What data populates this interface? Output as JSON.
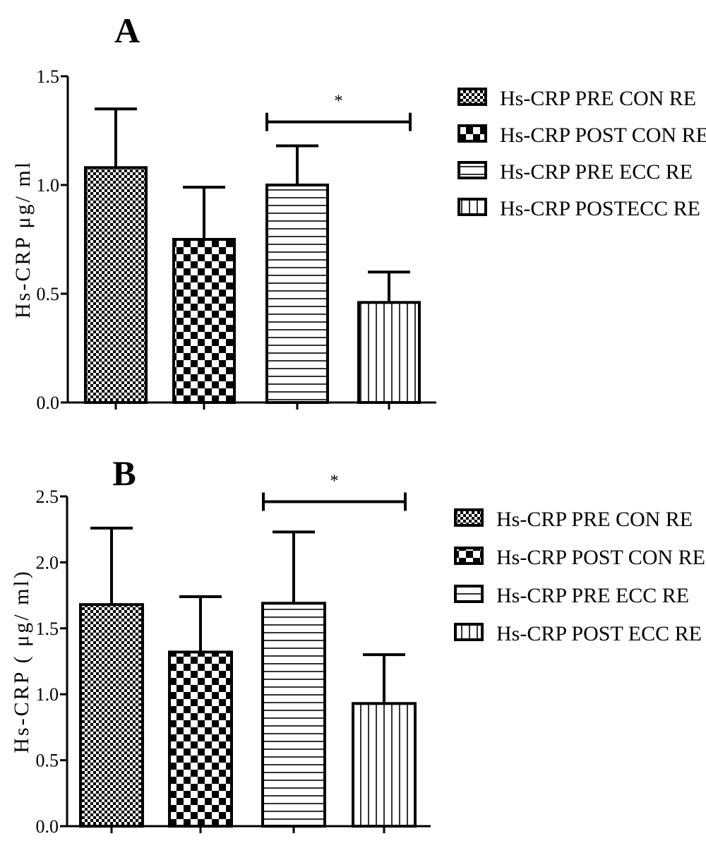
{
  "chart_data": [
    {
      "type": "bar",
      "panel_label": "A",
      "ylabel": "Hs-CRP  μg/ ml",
      "ylim": [
        0,
        1.5
      ],
      "yticks": [
        "0.0",
        "0.5",
        "1.0",
        "1.5"
      ],
      "series": [
        {
          "name": "Hs-CRP PRE CON RE",
          "value": 1.08,
          "error": 0.27,
          "pattern": "fine-check"
        },
        {
          "name": "Hs-CRP POST CON RE",
          "value": 0.75,
          "error": 0.24,
          "pattern": "checker"
        },
        {
          "name": "Hs-CRP PRE ECC RE",
          "value": 1.0,
          "error": 0.18,
          "pattern": "horizontal"
        },
        {
          "name": "Hs-CRP POSTECC RE",
          "value": 0.46,
          "error": 0.14,
          "pattern": "vertical"
        }
      ],
      "significance": {
        "from": 2,
        "to": 3,
        "label": "*",
        "level": 1.29
      },
      "legend": {
        "position": "right"
      }
    },
    {
      "type": "bar",
      "panel_label": "B",
      "ylabel": "Hs-CRP ( μg/ ml)",
      "ylim": [
        0,
        2.5
      ],
      "yticks": [
        "0.0",
        "0.5",
        "1.0",
        "1.5",
        "2.0",
        "2.5"
      ],
      "series": [
        {
          "name": "Hs-CRP PRE CON RE",
          "value": 1.68,
          "error": 0.58,
          "pattern": "fine-check"
        },
        {
          "name": "Hs-CRP POST CON RE",
          "value": 1.32,
          "error": 0.42,
          "pattern": "checker"
        },
        {
          "name": "Hs-CRP PRE ECC RE",
          "value": 1.69,
          "error": 0.54,
          "pattern": "horizontal"
        },
        {
          "name": "Hs-CRP POST ECC RE",
          "value": 0.93,
          "error": 0.37,
          "pattern": "vertical"
        }
      ],
      "significance": {
        "from": 2,
        "to": 3,
        "label": "*",
        "level": 2.46
      },
      "legend": {
        "position": "right"
      }
    }
  ]
}
